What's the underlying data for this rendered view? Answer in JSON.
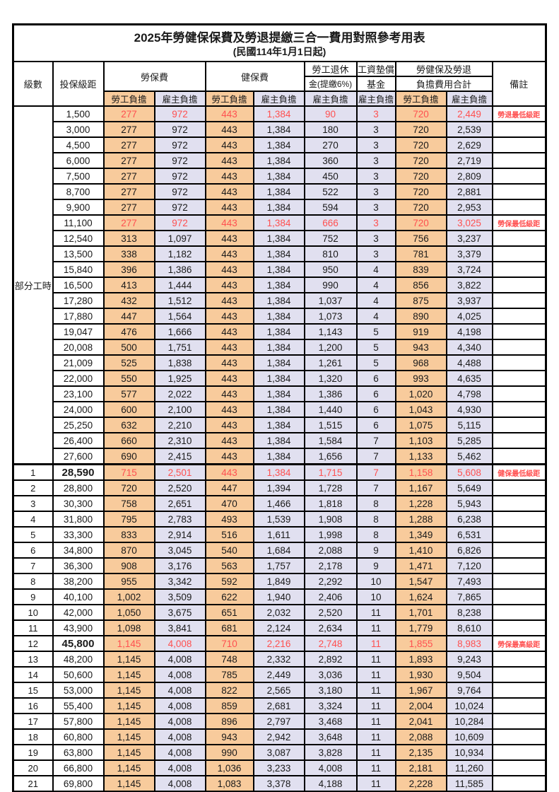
{
  "title": "2025年勞健保保費及勞退提繳三合一費用對照參考用表",
  "subtitle": "(民國114年1月1日起)",
  "colors": {
    "employee_column_bg": "#F8CB9C",
    "employer_column_bg": "#E1E0F0",
    "highlight_text": "#FF5050",
    "border": "#000000"
  },
  "header": {
    "level": "級數",
    "bracket": "投保級距",
    "labor_insurance": "勞保費",
    "health_insurance": "健保費",
    "pension_line1": "勞工退休",
    "pension_line2": "金(提繳6%)",
    "wage_fund_line1": "工資墊償",
    "wage_fund_line2": "基金",
    "total_line1": "勞健保及勞退",
    "total_line2": "負擔費用合計",
    "remark": "備註",
    "employee_share": "勞工負擔",
    "employer_share": "雇主負擔"
  },
  "part_time_label": "部分工時",
  "row_fields": [
    "level",
    "insured_bracket",
    "labor_employee",
    "labor_employer",
    "health_employee",
    "health_employer",
    "pension_employer_6pct",
    "wage_fund_employer",
    "total_employee",
    "total_employer",
    "remark",
    "flags(r=red,b=bold-bracket,s=thick-top-border)"
  ],
  "rows": [
    [
      "",
      "1,500",
      "277",
      "972",
      "443",
      "1,384",
      "90",
      "3",
      "720",
      "2,449",
      "勞退最低級距",
      "r"
    ],
    [
      "",
      "3,000",
      "277",
      "972",
      "443",
      "1,384",
      "180",
      "3",
      "720",
      "2,539",
      "",
      ""
    ],
    [
      "",
      "4,500",
      "277",
      "972",
      "443",
      "1,384",
      "270",
      "3",
      "720",
      "2,629",
      "",
      ""
    ],
    [
      "",
      "6,000",
      "277",
      "972",
      "443",
      "1,384",
      "360",
      "3",
      "720",
      "2,719",
      "",
      ""
    ],
    [
      "",
      "7,500",
      "277",
      "972",
      "443",
      "1,384",
      "450",
      "3",
      "720",
      "2,809",
      "",
      ""
    ],
    [
      "",
      "8,700",
      "277",
      "972",
      "443",
      "1,384",
      "522",
      "3",
      "720",
      "2,881",
      "",
      ""
    ],
    [
      "",
      "9,900",
      "277",
      "972",
      "443",
      "1,384",
      "594",
      "3",
      "720",
      "2,953",
      "",
      ""
    ],
    [
      "",
      "11,100",
      "277",
      "972",
      "443",
      "1,384",
      "666",
      "3",
      "720",
      "3,025",
      "勞保最低級距",
      "r"
    ],
    [
      "",
      "12,540",
      "313",
      "1,097",
      "443",
      "1,384",
      "752",
      "3",
      "756",
      "3,237",
      "",
      ""
    ],
    [
      "",
      "13,500",
      "338",
      "1,182",
      "443",
      "1,384",
      "810",
      "3",
      "781",
      "3,379",
      "",
      ""
    ],
    [
      "",
      "15,840",
      "396",
      "1,386",
      "443",
      "1,384",
      "950",
      "4",
      "839",
      "3,724",
      "",
      ""
    ],
    [
      "",
      "16,500",
      "413",
      "1,444",
      "443",
      "1,384",
      "990",
      "4",
      "856",
      "3,822",
      "",
      ""
    ],
    [
      "",
      "17,280",
      "432",
      "1,512",
      "443",
      "1,384",
      "1,037",
      "4",
      "875",
      "3,937",
      "",
      ""
    ],
    [
      "",
      "17,880",
      "447",
      "1,564",
      "443",
      "1,384",
      "1,073",
      "4",
      "890",
      "4,025",
      "",
      ""
    ],
    [
      "",
      "19,047",
      "476",
      "1,666",
      "443",
      "1,384",
      "1,143",
      "5",
      "919",
      "4,198",
      "",
      ""
    ],
    [
      "",
      "20,008",
      "500",
      "1,751",
      "443",
      "1,384",
      "1,200",
      "5",
      "943",
      "4,340",
      "",
      ""
    ],
    [
      "",
      "21,009",
      "525",
      "1,838",
      "443",
      "1,384",
      "1,261",
      "5",
      "968",
      "4,488",
      "",
      ""
    ],
    [
      "",
      "22,000",
      "550",
      "1,925",
      "443",
      "1,384",
      "1,320",
      "6",
      "993",
      "4,635",
      "",
      ""
    ],
    [
      "",
      "23,100",
      "577",
      "2,022",
      "443",
      "1,384",
      "1,386",
      "6",
      "1,020",
      "4,798",
      "",
      ""
    ],
    [
      "",
      "24,000",
      "600",
      "2,100",
      "443",
      "1,384",
      "1,440",
      "6",
      "1,043",
      "4,930",
      "",
      ""
    ],
    [
      "",
      "25,250",
      "632",
      "2,210",
      "443",
      "1,384",
      "1,515",
      "6",
      "1,075",
      "5,115",
      "",
      ""
    ],
    [
      "",
      "26,400",
      "660",
      "2,310",
      "443",
      "1,384",
      "1,584",
      "7",
      "1,103",
      "5,285",
      "",
      ""
    ],
    [
      "",
      "27,600",
      "690",
      "2,415",
      "443",
      "1,384",
      "1,656",
      "7",
      "1,133",
      "5,462",
      "",
      ""
    ],
    [
      "1",
      "28,590",
      "715",
      "2,501",
      "443",
      "1,384",
      "1,715",
      "7",
      "1,158",
      "5,608",
      "健保最低級距",
      "rbs"
    ],
    [
      "2",
      "28,800",
      "720",
      "2,520",
      "447",
      "1,394",
      "1,728",
      "7",
      "1,167",
      "5,649",
      "",
      ""
    ],
    [
      "3",
      "30,300",
      "758",
      "2,651",
      "470",
      "1,466",
      "1,818",
      "8",
      "1,228",
      "5,943",
      "",
      ""
    ],
    [
      "4",
      "31,800",
      "795",
      "2,783",
      "493",
      "1,539",
      "1,908",
      "8",
      "1,288",
      "6,238",
      "",
      ""
    ],
    [
      "5",
      "33,300",
      "833",
      "2,914",
      "516",
      "1,611",
      "1,998",
      "8",
      "1,349",
      "6,531",
      "",
      ""
    ],
    [
      "6",
      "34,800",
      "870",
      "3,045",
      "540",
      "1,684",
      "2,088",
      "9",
      "1,410",
      "6,826",
      "",
      ""
    ],
    [
      "7",
      "36,300",
      "908",
      "3,176",
      "563",
      "1,757",
      "2,178",
      "9",
      "1,471",
      "7,120",
      "",
      ""
    ],
    [
      "8",
      "38,200",
      "955",
      "3,342",
      "592",
      "1,849",
      "2,292",
      "10",
      "1,547",
      "7,493",
      "",
      ""
    ],
    [
      "9",
      "40,100",
      "1,002",
      "3,509",
      "622",
      "1,940",
      "2,406",
      "10",
      "1,624",
      "7,865",
      "",
      ""
    ],
    [
      "10",
      "42,000",
      "1,050",
      "3,675",
      "651",
      "2,032",
      "2,520",
      "11",
      "1,701",
      "8,238",
      "",
      ""
    ],
    [
      "11",
      "43,900",
      "1,098",
      "3,841",
      "681",
      "2,124",
      "2,634",
      "11",
      "1,779",
      "8,610",
      "",
      ""
    ],
    [
      "12",
      "45,800",
      "1,145",
      "4,008",
      "710",
      "2,216",
      "2,748",
      "11",
      "1,855",
      "8,983",
      "勞保最高級距",
      "rb"
    ],
    [
      "13",
      "48,200",
      "1,145",
      "4,008",
      "748",
      "2,332",
      "2,892",
      "11",
      "1,893",
      "9,243",
      "",
      ""
    ],
    [
      "14",
      "50,600",
      "1,145",
      "4,008",
      "785",
      "2,449",
      "3,036",
      "11",
      "1,930",
      "9,504",
      "",
      ""
    ],
    [
      "15",
      "53,000",
      "1,145",
      "4,008",
      "822",
      "2,565",
      "3,180",
      "11",
      "1,967",
      "9,764",
      "",
      ""
    ],
    [
      "16",
      "55,400",
      "1,145",
      "4,008",
      "859",
      "2,681",
      "3,324",
      "11",
      "2,004",
      "10,024",
      "",
      ""
    ],
    [
      "17",
      "57,800",
      "1,145",
      "4,008",
      "896",
      "2,797",
      "3,468",
      "11",
      "2,041",
      "10,284",
      "",
      ""
    ],
    [
      "18",
      "60,800",
      "1,145",
      "4,008",
      "943",
      "2,942",
      "3,648",
      "11",
      "2,088",
      "10,609",
      "",
      ""
    ],
    [
      "19",
      "63,800",
      "1,145",
      "4,008",
      "990",
      "3,087",
      "3,828",
      "11",
      "2,135",
      "10,934",
      "",
      ""
    ],
    [
      "20",
      "66,800",
      "1,145",
      "4,008",
      "1,036",
      "3,233",
      "4,008",
      "11",
      "2,181",
      "11,260",
      "",
      ""
    ],
    [
      "21",
      "69,800",
      "1,145",
      "4,008",
      "1,083",
      "3,378",
      "4,188",
      "11",
      "2,228",
      "11,585",
      "",
      ""
    ]
  ]
}
